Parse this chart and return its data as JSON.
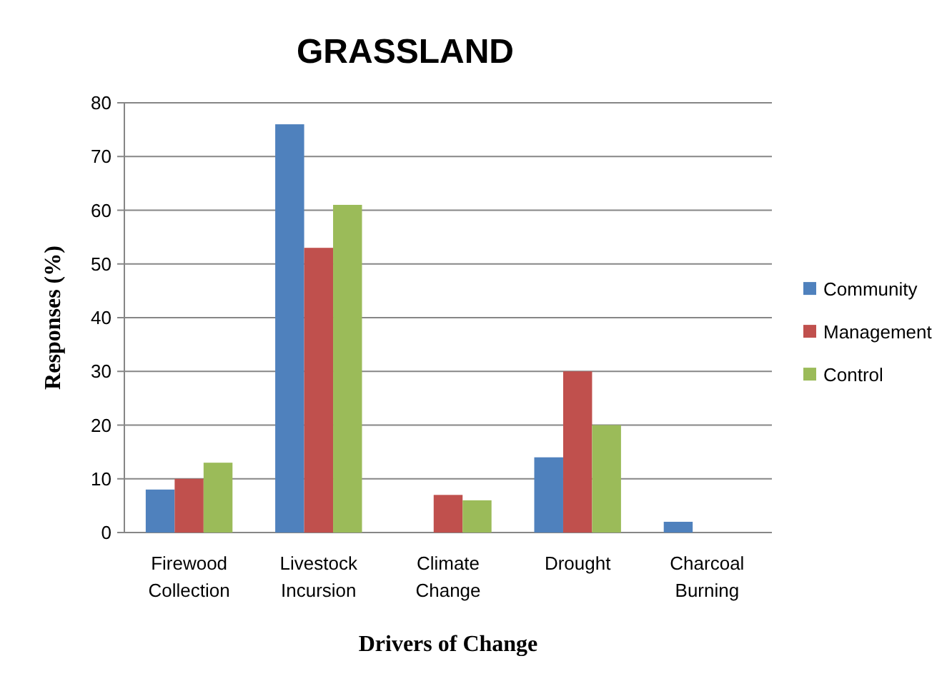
{
  "chart_data": {
    "type": "bar",
    "title": "GRASSLAND",
    "xlabel": "Drivers of Change",
    "ylabel": "Responses (%)",
    "categories": [
      "Firewood Collection",
      "Livestock Incursion",
      "Climate Change",
      "Drought",
      "Charcoal Burning"
    ],
    "series": [
      {
        "name": "Community",
        "color": "#4f81bd",
        "values": [
          8,
          76,
          0,
          14,
          2
        ]
      },
      {
        "name": "Management",
        "color": "#c0504d",
        "values": [
          10,
          53,
          7,
          30,
          0
        ]
      },
      {
        "name": "Control",
        "color": "#9bbb59",
        "values": [
          13,
          61,
          6,
          20,
          0
        ]
      }
    ],
    "ylim": [
      0,
      80
    ],
    "yticks": [
      0,
      10,
      20,
      30,
      40,
      50,
      60,
      70,
      80
    ],
    "grid": "y",
    "legend": "right"
  }
}
